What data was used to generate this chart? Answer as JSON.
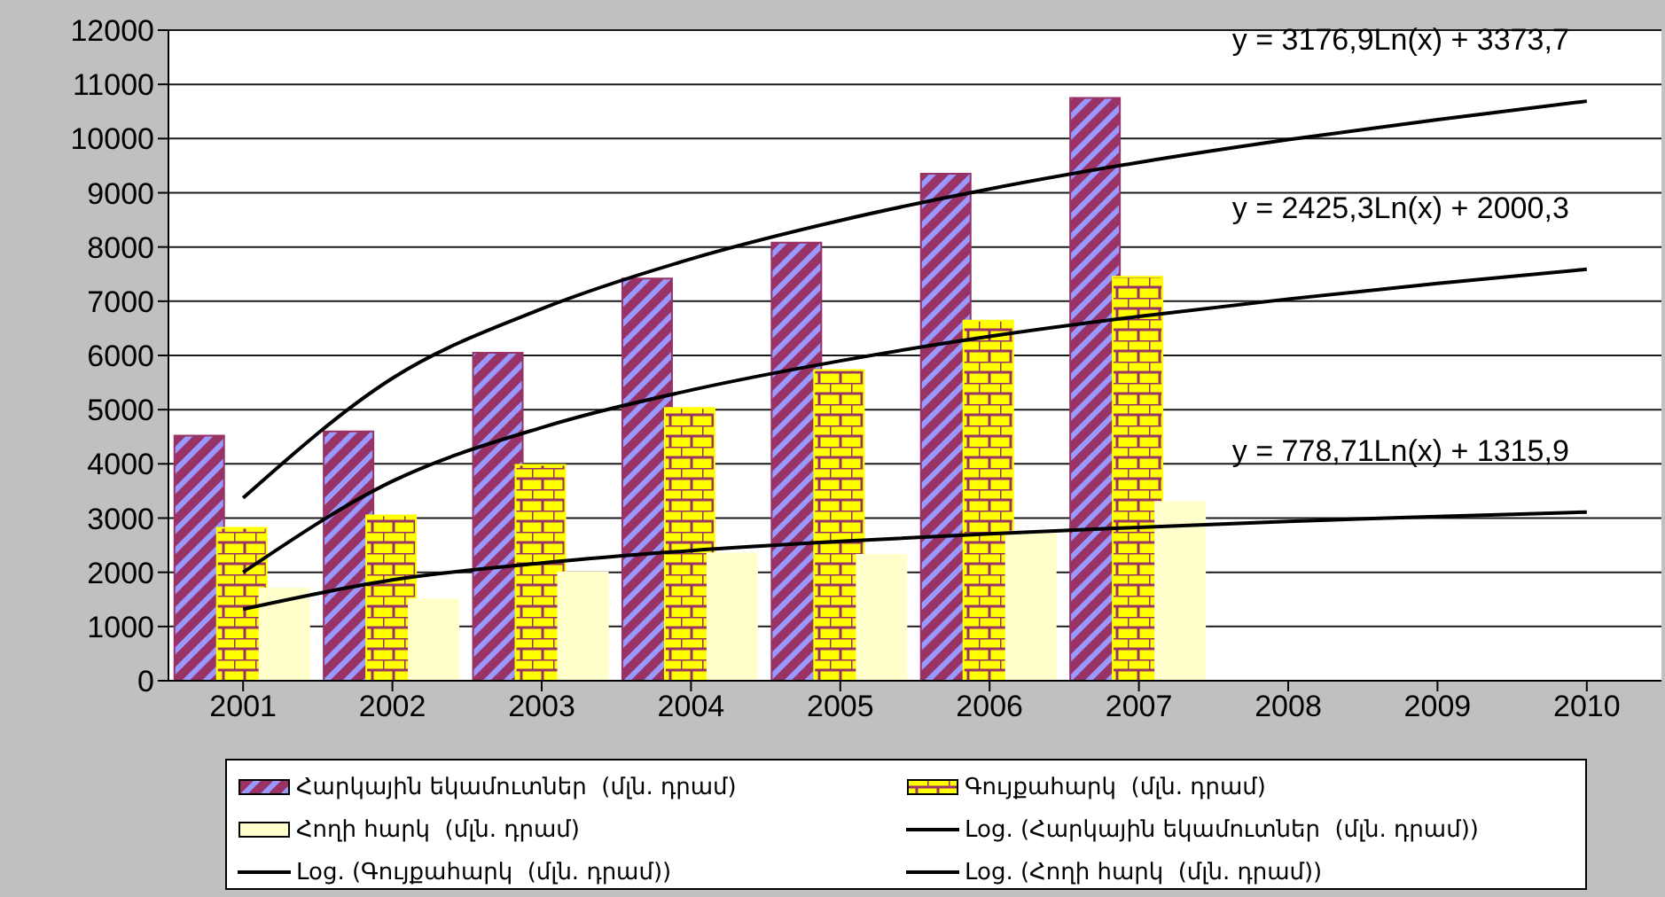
{
  "chart_data": {
    "type": "bar",
    "categories": [
      "2001",
      "2002",
      "2003",
      "2004",
      "2005",
      "2006",
      "2007",
      "2008",
      "2009",
      "2010"
    ],
    "series": [
      {
        "name": "Հարկային եկամուտներ  (մլն. դրամ)",
        "color": "#993366",
        "values": [
          4520,
          4600,
          6050,
          7420,
          8080,
          9350,
          10750,
          null,
          null,
          null
        ]
      },
      {
        "name": "Գույքահարկ  (մլն. դրամ)",
        "color": "#ffff00",
        "values": [
          2820,
          3050,
          3980,
          5030,
          5730,
          6640,
          7450,
          null,
          null,
          null
        ]
      },
      {
        "name": "Հողի հարկ  (մլն. դրամ)",
        "color": "#ffffcc",
        "values": [
          1700,
          1500,
          2000,
          2350,
          2320,
          2750,
          3300,
          null,
          null,
          null
        ]
      },
      {
        "name": "Log. (Հարկային եկամուտներ  (մլն. դրամ))",
        "type": "line",
        "color": "#000000",
        "values": [
          3370,
          5580,
          6860,
          7780,
          8490,
          9070,
          9560,
          9980,
          10350,
          10690
        ]
      },
      {
        "name": "Log. (Գույքահարկ  (մլն. դրամ))",
        "type": "line",
        "color": "#000000",
        "values": [
          2000,
          3680,
          4670,
          5360,
          5900,
          6350,
          6720,
          7040,
          7330,
          7590
        ]
      },
      {
        "name": "Log. (Հողի հարկ  (մլն. դրամ))",
        "type": "line",
        "color": "#000000",
        "values": [
          1320,
          1860,
          2170,
          2400,
          2570,
          2710,
          2830,
          2940,
          3030,
          3110
        ]
      }
    ],
    "annotations": [
      "y = 3176,9Ln(x) + 3373,7",
      "y = 2425,3Ln(x) + 2000,3",
      "y = 778,71Ln(x) + 1315,9"
    ],
    "ylim": [
      0,
      12000
    ],
    "yticks": [
      0,
      1000,
      2000,
      3000,
      4000,
      5000,
      6000,
      7000,
      8000,
      9000,
      10000,
      11000,
      12000
    ],
    "grid": "y",
    "legend": "bottom"
  }
}
